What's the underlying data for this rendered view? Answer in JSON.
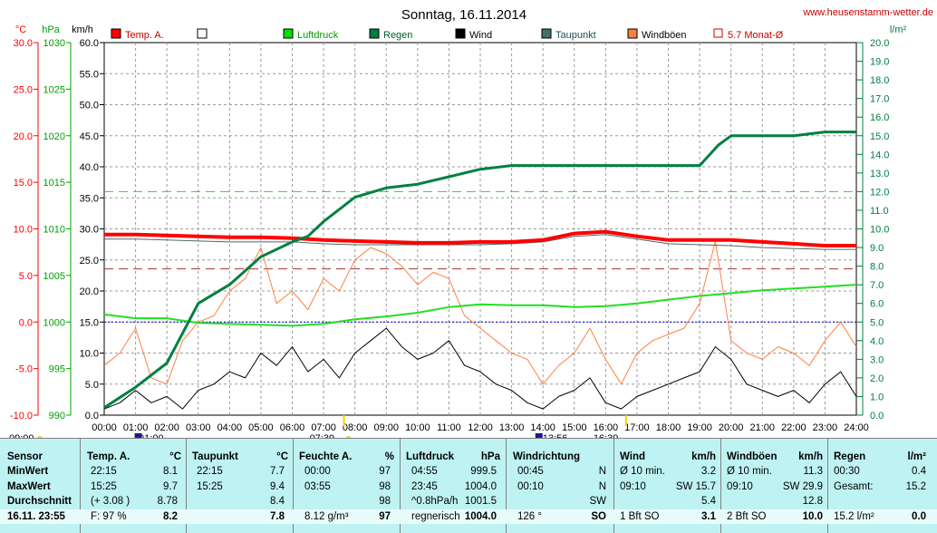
{
  "title": "Sonntag, 16.11.2014",
  "website": "www.heusenstamm-wetter.de",
  "chart_data": {
    "type": "line",
    "legend": [
      {
        "label": "Temp. A.",
        "color": "#ff0000"
      },
      {
        "label": "",
        "color": "#ffffff"
      },
      {
        "label": "Luftdruck",
        "color": "#00e000"
      },
      {
        "label": "Regen",
        "color": "#008040"
      },
      {
        "label": "Wind",
        "color": "#000000"
      },
      {
        "label": "Taupunkt",
        "color": "#407070"
      },
      {
        "label": "Windböen",
        "color": "#ff8040"
      },
      {
        "label": "5.7 Monat-Ø",
        "color": "#cc0000"
      }
    ],
    "axes": {
      "temp": {
        "unit": "°C",
        "min": -10,
        "max": 30,
        "step": 5,
        "color": "#ff0000",
        "ticks": [
          "30.0",
          "25.0",
          "20.0",
          "15.0",
          "10.0",
          "5.0",
          "0.0",
          "-5.0",
          "-10.0"
        ]
      },
      "pressure": {
        "unit": "hPa",
        "min": 990,
        "max": 1030,
        "step": 5,
        "color": "#00a000",
        "ticks": [
          "1030",
          "1025",
          "1020",
          "1015",
          "1010",
          "1005",
          "1000",
          "995",
          "990"
        ]
      },
      "wind": {
        "unit": "km/h",
        "min": 0,
        "max": 60,
        "step": 5,
        "color": "#000000",
        "ticks": [
          "60.0",
          "55.0",
          "50.0",
          "45.0",
          "40.0",
          "35.0",
          "30.0",
          "25.0",
          "20.0",
          "15.0",
          "10.0",
          "5.0",
          "0.0"
        ]
      },
      "rain": {
        "unit": "l/m²",
        "min": 0,
        "max": 20,
        "step": 1,
        "color": "#008040",
        "ticks": [
          "20.0",
          "19.0",
          "18.0",
          "17.0",
          "16.0",
          "15.0",
          "14.0",
          "13.0",
          "12.0",
          "11.0",
          "10.0",
          "9.0",
          "8.0",
          "7.0",
          "6.0",
          "5.0",
          "4.0",
          "3.0",
          "2.0",
          "1.0",
          "0.0"
        ]
      }
    },
    "x_ticks": [
      "00:00",
      "01:00",
      "02:00",
      "03:00",
      "04:00",
      "05:00",
      "06:00",
      "07:00",
      "08:00",
      "09:00",
      "10:00",
      "11:00",
      "12:00",
      "13:00",
      "14:00",
      "15:00",
      "16:00",
      "17:00",
      "18:00",
      "19:00",
      "20:00",
      "21:00",
      "22:00",
      "23:00",
      "24:00"
    ],
    "x_markers": [
      "09:00",
      "01:00",
      "07:39",
      "13:56",
      "16:39"
    ],
    "reference_lines": {
      "temp_month_avg": 5.7,
      "rain_dashed": 12.0,
      "pressure_dotted": 1000
    },
    "series": [
      {
        "name": "Temp. A.",
        "axis": "temp",
        "x": [
          0,
          1,
          2,
          3,
          4,
          5,
          6,
          7,
          8,
          9,
          10,
          11,
          12,
          13,
          14,
          15,
          16,
          17,
          18,
          19,
          20,
          21,
          22,
          23,
          24
        ],
        "y": [
          9.4,
          9.4,
          9.3,
          9.2,
          9.1,
          9.1,
          9.0,
          8.8,
          8.7,
          8.6,
          8.5,
          8.5,
          8.6,
          8.6,
          8.8,
          9.5,
          9.7,
          9.2,
          8.8,
          8.8,
          8.8,
          8.6,
          8.4,
          8.2,
          8.2
        ]
      },
      {
        "name": "Taupunkt",
        "axis": "temp",
        "x": [
          0,
          1,
          2,
          3,
          4,
          5,
          6,
          7,
          8,
          9,
          10,
          11,
          12,
          13,
          14,
          15,
          16,
          17,
          18,
          19,
          20,
          21,
          22,
          23,
          24
        ],
        "y": [
          8.9,
          8.9,
          8.8,
          8.7,
          8.6,
          8.6,
          8.6,
          8.4,
          8.3,
          8.3,
          8.3,
          8.3,
          8.3,
          8.4,
          8.6,
          9.2,
          9.4,
          8.9,
          8.4,
          8.3,
          8.2,
          8.0,
          7.9,
          7.8,
          7.8
        ]
      },
      {
        "name": "Luftdruck",
        "axis": "pressure",
        "x": [
          0,
          1,
          2,
          3,
          4,
          5,
          6,
          7,
          8,
          9,
          10,
          11,
          12,
          13,
          14,
          15,
          16,
          17,
          18,
          19,
          20,
          21,
          22,
          23,
          24
        ],
        "y": [
          1000.8,
          1000.4,
          1000.4,
          999.9,
          999.8,
          999.7,
          999.6,
          999.8,
          1000.3,
          1000.6,
          1001.0,
          1001.6,
          1001.9,
          1001.8,
          1001.8,
          1001.6,
          1001.7,
          1002.0,
          1002.4,
          1002.8,
          1003.1,
          1003.4,
          1003.6,
          1003.8,
          1004.0
        ]
      },
      {
        "name": "Regen",
        "axis": "rain",
        "x": [
          0,
          1,
          2,
          3,
          4,
          5,
          6,
          6.5,
          7,
          8,
          9,
          10,
          11,
          12,
          13,
          14,
          15,
          16,
          17,
          18,
          19,
          19.6,
          20,
          21,
          22,
          23,
          24
        ],
        "y": [
          0.4,
          1.5,
          2.8,
          6.0,
          7.0,
          8.5,
          9.3,
          9.6,
          10.4,
          11.7,
          12.2,
          12.4,
          12.8,
          13.2,
          13.4,
          13.4,
          13.4,
          13.4,
          13.4,
          13.4,
          13.4,
          14.5,
          15.0,
          15.0,
          15.0,
          15.2,
          15.2
        ]
      },
      {
        "name": "Wind",
        "axis": "wind",
        "x": [
          0,
          0.5,
          1,
          1.5,
          2,
          2.5,
          3,
          3.5,
          4,
          4.5,
          5,
          5.5,
          6,
          6.5,
          7,
          7.5,
          8,
          8.5,
          9,
          9.5,
          10,
          10.5,
          11,
          11.5,
          12,
          12.5,
          13,
          13.5,
          14,
          14.5,
          15,
          15.5,
          16,
          16.5,
          17,
          17.5,
          18,
          18.5,
          19,
          19.5,
          20,
          20.5,
          21,
          21.5,
          22,
          22.5,
          23,
          23.5,
          24
        ],
        "y": [
          1,
          2,
          4,
          2,
          3,
          1,
          4,
          5,
          7,
          6,
          10,
          8,
          11,
          7,
          9,
          6,
          10,
          12,
          14,
          11,
          9,
          10,
          12,
          8,
          7,
          5,
          4,
          2,
          1,
          3,
          4,
          6,
          2,
          1,
          3,
          4,
          5,
          6,
          7,
          11,
          9,
          5,
          4,
          3,
          4,
          2,
          5,
          7,
          3
        ]
      },
      {
        "name": "Windböen",
        "axis": "wind",
        "x": [
          0,
          0.5,
          1,
          1.5,
          2,
          2.5,
          3,
          3.5,
          4,
          4.5,
          5,
          5.5,
          6,
          6.5,
          7,
          7.5,
          8,
          8.5,
          9,
          9.5,
          10,
          10.5,
          11,
          11.5,
          12,
          12.5,
          13,
          13.5,
          14,
          14.5,
          15,
          15.5,
          16,
          16.5,
          17,
          17.5,
          18,
          18.5,
          19,
          19.5,
          20,
          20.5,
          21,
          21.5,
          22,
          22.5,
          23,
          23.5,
          24
        ],
        "y": [
          8,
          10,
          14,
          6,
          5,
          12,
          15,
          16,
          20,
          22,
          27,
          18,
          20,
          17,
          22,
          20,
          25,
          27,
          26,
          24,
          21,
          23,
          22,
          16,
          14,
          12,
          10,
          9,
          5,
          8,
          10,
          14,
          9,
          5,
          10,
          12,
          13,
          14,
          18,
          28,
          12,
          10,
          9,
          11,
          10,
          8,
          12,
          15,
          11
        ]
      }
    ]
  },
  "table": {
    "headers": [
      {
        "label": "Sensor",
        "unit": ""
      },
      {
        "label": "Temp. A.",
        "unit": "°C"
      },
      {
        "label": "Taupunkt",
        "unit": "°C"
      },
      {
        "label": "Feuchte A.",
        "unit": "%"
      },
      {
        "label": "Luftdruck",
        "unit": "hPa"
      },
      {
        "label": "Windrichtung",
        "unit": ""
      },
      {
        "label": "Wind",
        "unit": "km/h"
      },
      {
        "label": "Windböen",
        "unit": "km/h"
      },
      {
        "label": "Regen",
        "unit": "l/m²"
      }
    ],
    "row_labels": [
      "MinWert",
      "MaxWert",
      "Durchschnitt",
      "16.11. 23:55"
    ],
    "cells": {
      "temp": [
        [
          "22:15",
          "8.1"
        ],
        [
          "15:25",
          "9.7"
        ],
        [
          "(+ 3.08 )",
          "8.78"
        ],
        [
          "F: 97 %",
          "8.2"
        ]
      ],
      "dew": [
        [
          "22:15",
          "7.7"
        ],
        [
          "15:25",
          "9.4"
        ],
        [
          "",
          "8.4"
        ],
        [
          "",
          "7.8"
        ]
      ],
      "hum": [
        [
          "00:00",
          "97"
        ],
        [
          "03:55",
          "98"
        ],
        [
          "",
          "98"
        ],
        [
          "8.12 g/m³",
          "97"
        ]
      ],
      "press": [
        [
          "04:55",
          "999.5"
        ],
        [
          "23:45",
          "1004.0"
        ],
        [
          "^0.8hPa/h",
          "1001.5"
        ],
        [
          "regnerisch",
          "1004.0"
        ]
      ],
      "dir": [
        [
          "00:45",
          "N"
        ],
        [
          "00:10",
          "N"
        ],
        [
          "",
          "SW"
        ],
        [
          "126 °",
          "SO"
        ]
      ],
      "wind": [
        [
          "Ø 10 min.",
          "3.2"
        ],
        [
          "09:10",
          "SW 15.7"
        ],
        [
          "",
          "5.4"
        ],
        [
          "1 Bft SO",
          "3.1"
        ]
      ],
      "gust": [
        [
          "Ø 10 min.",
          "11.3"
        ],
        [
          "09:10",
          "SW 29.9"
        ],
        [
          "",
          "12.8"
        ],
        [
          "2 Bft SO",
          "10.0"
        ]
      ],
      "rain": [
        [
          "00:30",
          "0.4"
        ],
        [
          "Gesamt:",
          "15.2"
        ],
        [
          "",
          ""
        ],
        [
          "15.2 l/m²",
          "0.0"
        ]
      ]
    }
  }
}
